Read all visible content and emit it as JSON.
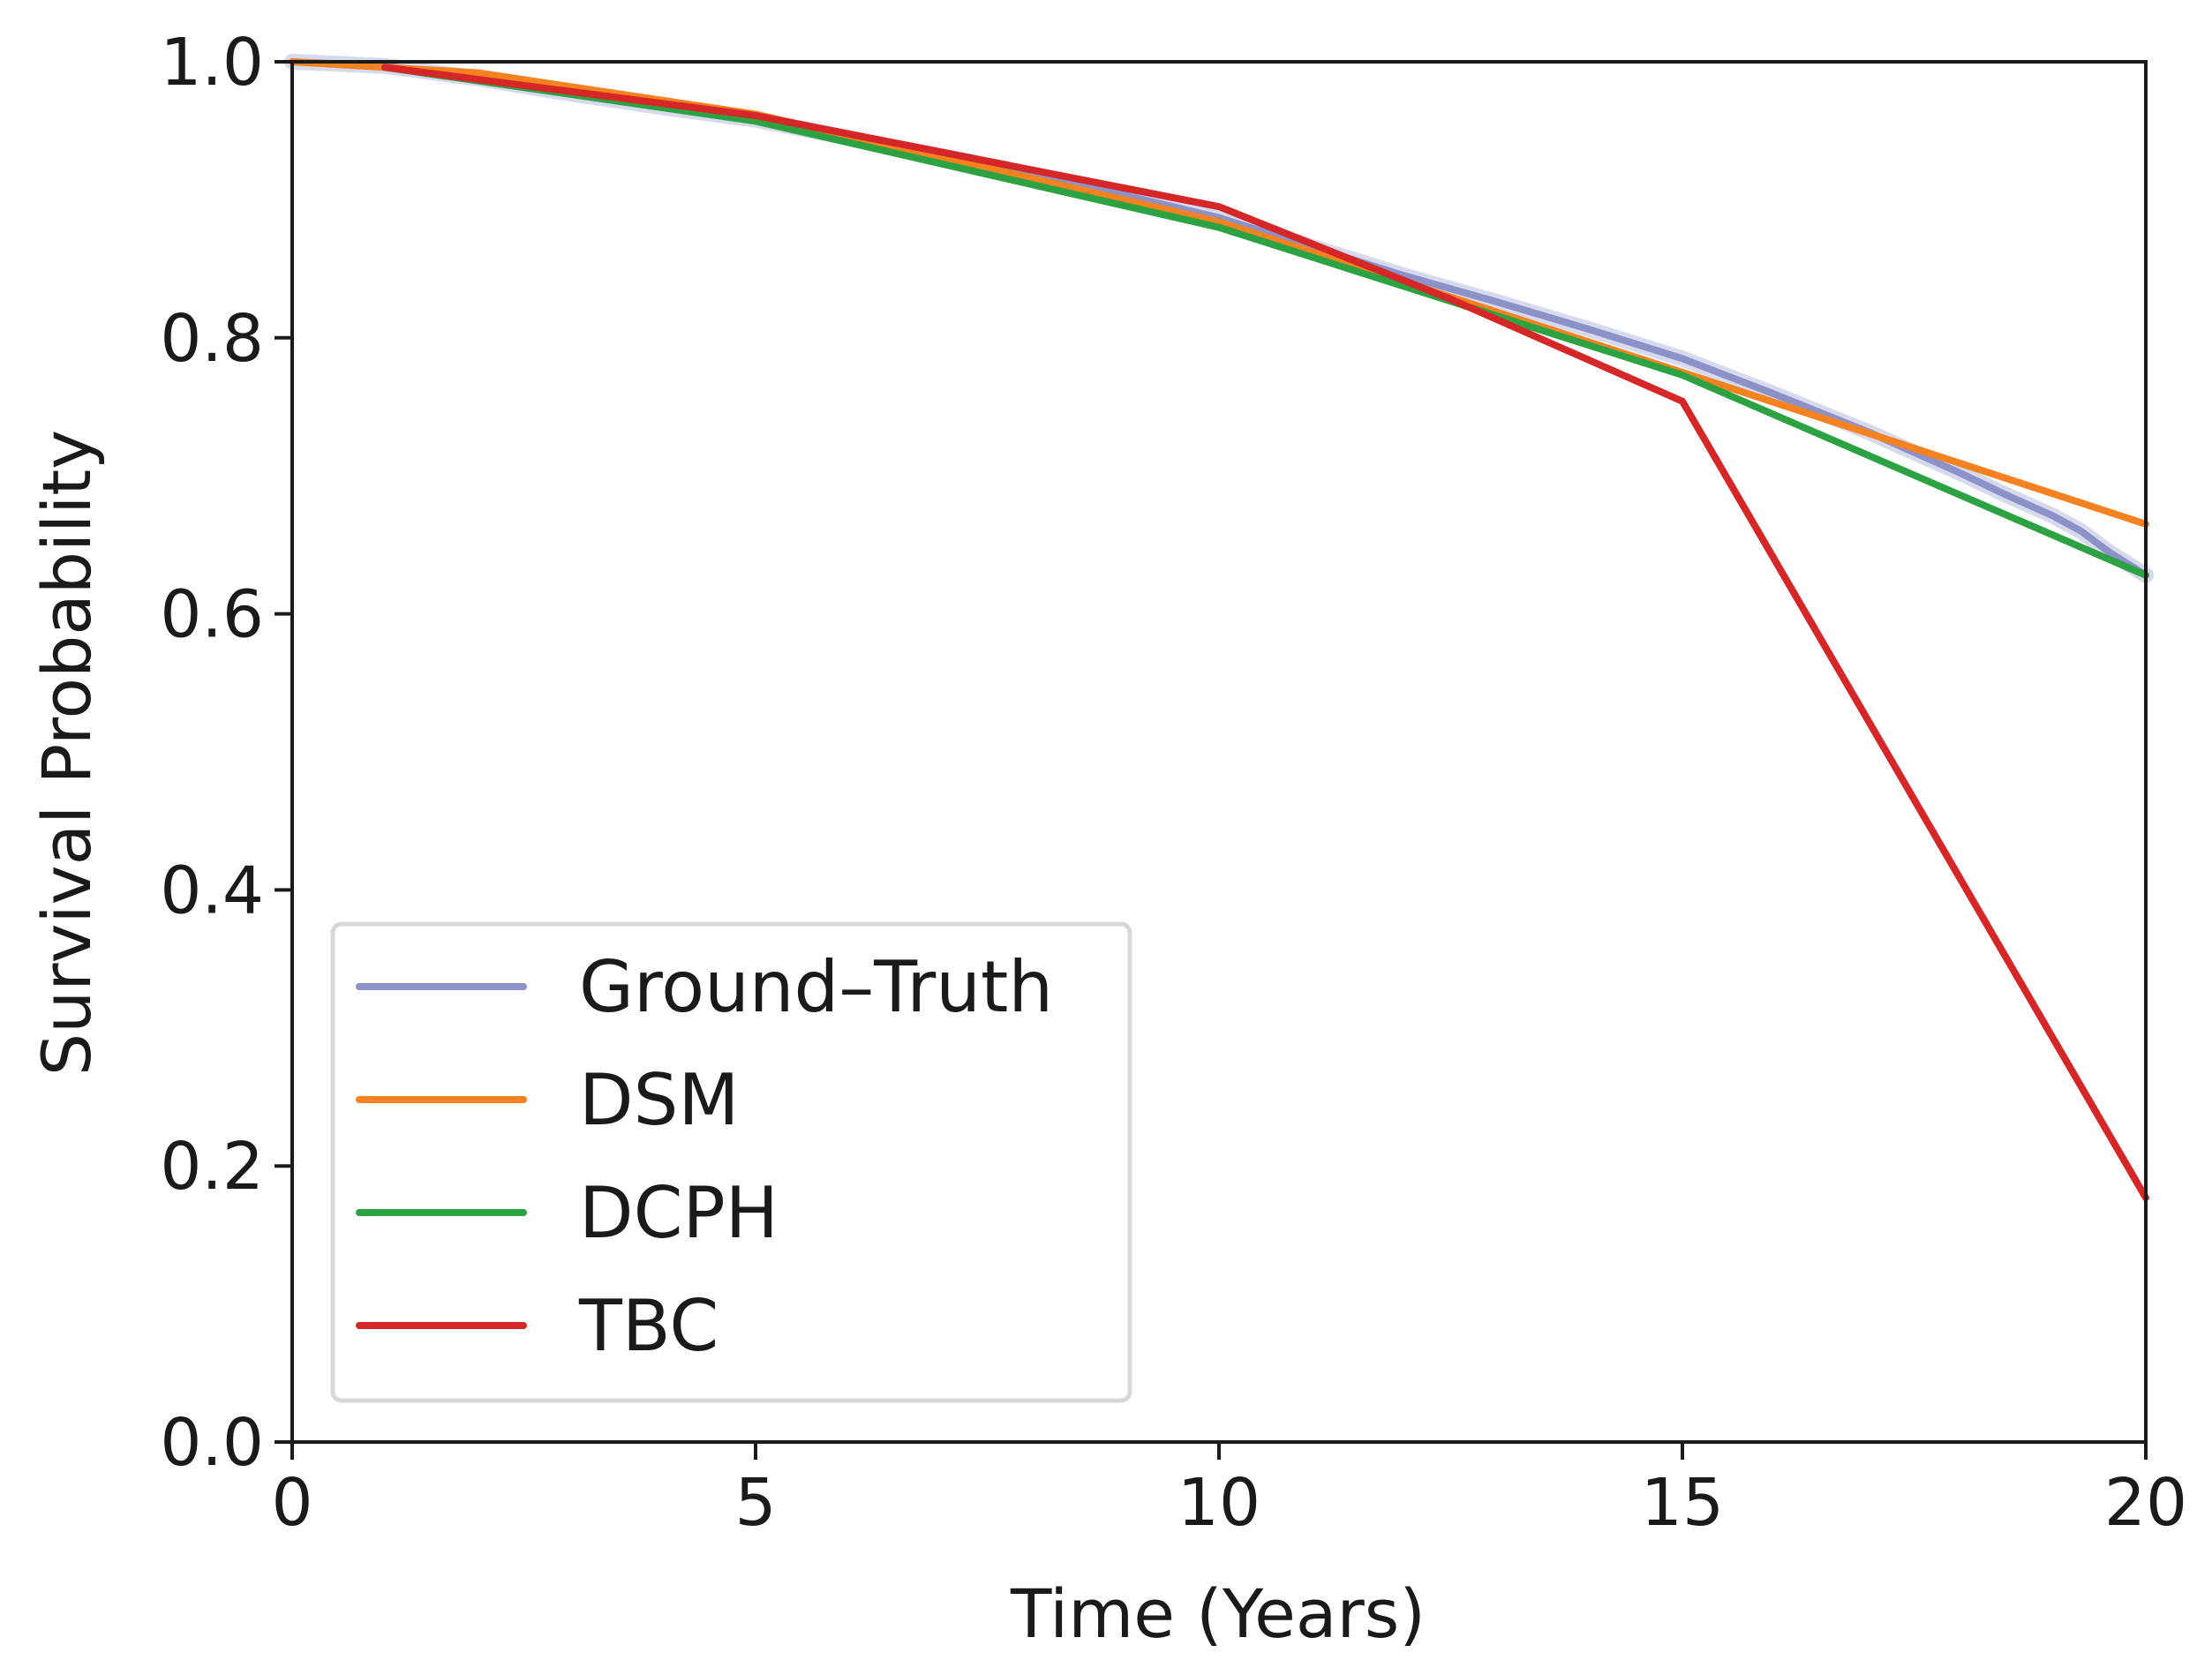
{
  "chart_data": {
    "type": "line",
    "xlabel": "Time (Years)",
    "ylabel": "Survival Probability",
    "xlim": [
      0,
      20
    ],
    "ylim": [
      0.0,
      1.0
    ],
    "xticks": [
      "0",
      "5",
      "10",
      "15",
      "20"
    ],
    "yticks": [
      "0.0",
      "0.2",
      "0.4",
      "0.6",
      "0.8",
      "1.0"
    ],
    "grid": false,
    "legend_position": "lower-left",
    "series": [
      {
        "name": "Ground–Truth",
        "color": "#8c91c8",
        "band": true,
        "x": [
          0,
          1,
          2,
          3,
          4,
          5,
          6,
          7,
          8,
          9,
          10,
          11,
          12,
          13,
          14,
          15,
          16,
          17,
          18,
          18.5,
          19,
          19.3,
          19.6,
          20
        ],
        "y": [
          1.0,
          0.997,
          0.988,
          0.977,
          0.967,
          0.958,
          0.945,
          0.932,
          0.918,
          0.903,
          0.887,
          0.866,
          0.845,
          0.826,
          0.806,
          0.785,
          0.759,
          0.732,
          0.702,
          0.686,
          0.671,
          0.66,
          0.645,
          0.628
        ]
      },
      {
        "name": "DSM",
        "color": "#f58220",
        "band": false,
        "x": [
          0,
          2,
          5,
          10,
          15,
          20
        ],
        "y": [
          1.0,
          0.992,
          0.962,
          0.884,
          0.775,
          0.665
        ]
      },
      {
        "name": "DCPH",
        "color": "#2ca243",
        "band": false,
        "x": [
          1,
          5,
          10,
          15,
          20
        ],
        "y": [
          0.996,
          0.957,
          0.88,
          0.773,
          0.628
        ]
      },
      {
        "name": "TBC",
        "color": "#d62728",
        "band": false,
        "x": [
          1,
          5,
          10,
          12.5,
          15,
          20
        ],
        "y": [
          0.996,
          0.961,
          0.895,
          0.828,
          0.754,
          0.177
        ]
      }
    ]
  }
}
